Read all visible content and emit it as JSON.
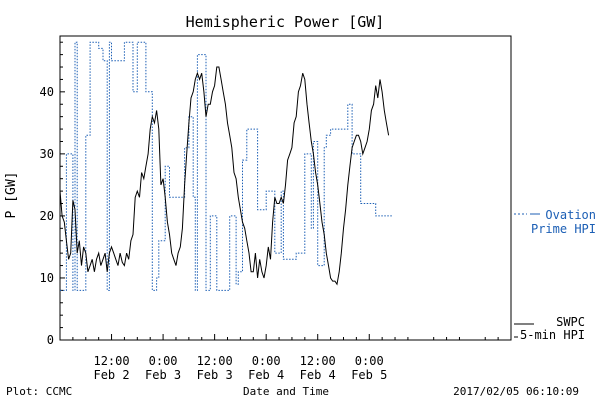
{
  "chart_data": {
    "type": "line",
    "title": "Hemispheric Power [GW]",
    "ylabel": "P [GW]",
    "xlabel": "Date and Time",
    "ylim": [
      0,
      49
    ],
    "xlim": [
      0,
      105
    ],
    "x_unit": "hours since 2017-02-02 00:00 UT",
    "y_ticks": [
      0,
      10,
      20,
      30,
      40
    ],
    "x_ticks": [
      {
        "x": 12,
        "time": "12:00",
        "date": "Feb 2"
      },
      {
        "x": 24,
        "time": "0:00",
        "date": "Feb 3"
      },
      {
        "x": 36,
        "time": "12:00",
        "date": "Feb 3"
      },
      {
        "x": 48,
        "time": "0:00",
        "date": "Feb 4"
      },
      {
        "x": 60,
        "time": "12:00",
        "date": "Feb 4"
      },
      {
        "x": 72,
        "time": "0:00",
        "date": "Feb 5"
      }
    ],
    "series": [
      {
        "name": "Ovation Prime HPI",
        "legend_lines": [
          "Ovation",
          "Prime HPI"
        ],
        "color": "#1c5fb5",
        "style": "dotted-step",
        "x": [
          0.0,
          1.5,
          3.0,
          3.5,
          4.0,
          6.0,
          7.0,
          9.0,
          10.0,
          11.0,
          11.5,
          12.0,
          13.0,
          14.0,
          15.0,
          16.0,
          17.0,
          18.0,
          19.0,
          20.0,
          21.5,
          22.5,
          23.0,
          24.5,
          25.5,
          26.5,
          29.0,
          30.0,
          31.0,
          31.5,
          32.0,
          33.0,
          34.0,
          35.0,
          36.5,
          37.5,
          38.0,
          39.5,
          41.0,
          41.5,
          42.5,
          43.5,
          46.0,
          47.0,
          48.0,
          50.0,
          51.5,
          52.0,
          54.0,
          55.0,
          57.0,
          58.5,
          59.0,
          60.0,
          61.5,
          62.0,
          63.0,
          63.5,
          64.5,
          65.0,
          66.0,
          67.0,
          68.0,
          69.5,
          70.0,
          71.0,
          73.5,
          74.0,
          75.0,
          76.0
        ],
        "y": [
          8.0,
          30.0,
          8.0,
          48.0,
          8.0,
          33.0,
          48.0,
          47.0,
          45.0,
          8.0,
          48.0,
          45.0,
          45.0,
          45.0,
          48.0,
          48.0,
          40.0,
          48.0,
          48.0,
          40.0,
          8.0,
          10.0,
          16.0,
          28.0,
          23.0,
          23.0,
          31.0,
          36.0,
          23.0,
          8.0,
          46.0,
          46.0,
          8.0,
          20.0,
          8.0,
          8.0,
          8.0,
          20.0,
          9.0,
          11.0,
          29.0,
          34.0,
          21.0,
          21.0,
          24.0,
          14.0,
          24.0,
          13.0,
          13.0,
          14.0,
          30.0,
          18.0,
          32.0,
          12.0,
          31.0,
          33.0,
          34.0,
          34.0,
          34.0,
          34.0,
          34.0,
          38.0,
          30.0,
          30.0,
          22.0,
          22.0,
          20.0,
          20.0,
          20.0,
          20.0
        ]
      },
      {
        "name": "SWPC 5-min HPI",
        "legend_lines": [
          "SWPC",
          "5-min HPI"
        ],
        "color": "#000000",
        "style": "solid",
        "x": [
          0.0,
          0.5,
          1.0,
          1.5,
          2.0,
          2.5,
          3.0,
          3.5,
          4.0,
          4.5,
          5.0,
          5.5,
          6.0,
          6.5,
          7.0,
          7.5,
          8.0,
          8.5,
          9.0,
          9.5,
          10.0,
          10.5,
          11.0,
          11.5,
          12.0,
          12.5,
          13.0,
          13.5,
          14.0,
          14.5,
          15.0,
          15.5,
          16.0,
          16.5,
          17.0,
          17.5,
          18.0,
          18.5,
          19.0,
          19.5,
          20.0,
          20.5,
          21.0,
          21.5,
          22.0,
          22.5,
          23.0,
          23.5,
          24.0,
          24.5,
          25.0,
          25.5,
          26.0,
          26.5,
          27.0,
          27.5,
          28.0,
          28.5,
          29.0,
          29.5,
          30.0,
          30.5,
          31.0,
          31.5,
          32.0,
          32.5,
          33.0,
          33.5,
          34.0,
          34.5,
          35.0,
          35.5,
          36.0,
          36.5,
          37.0,
          37.5,
          38.0,
          38.5,
          39.0,
          39.5,
          40.0,
          40.5,
          41.0,
          41.5,
          42.0,
          42.5,
          43.0,
          43.5,
          44.0,
          44.5,
          45.0,
          45.5,
          46.0,
          46.5,
          47.0,
          47.5,
          48.0,
          48.5,
          49.0,
          49.5,
          50.0,
          50.5,
          51.0,
          51.5,
          52.0,
          52.5,
          53.0,
          53.5,
          54.0,
          54.5,
          55.0,
          55.5,
          56.0,
          56.5,
          57.0,
          57.5,
          58.0,
          58.5,
          59.0,
          59.5,
          60.0,
          60.5,
          61.0,
          61.5,
          62.0,
          62.5,
          63.0,
          63.5,
          64.0,
          64.5,
          65.0,
          65.5,
          66.0,
          66.5,
          67.0,
          67.5,
          68.0,
          68.5,
          69.0,
          69.5,
          70.0,
          70.5,
          71.0,
          71.5,
          72.0,
          72.5,
          73.0,
          73.5,
          74.0,
          74.5,
          75.0,
          75.5,
          76.0,
          76.5
        ],
        "y": [
          24.0,
          20.0,
          19.0,
          16.0,
          13.0,
          14.0,
          22.5,
          21.0,
          14.0,
          16.0,
          12.0,
          15.0,
          14.0,
          11.0,
          12.0,
          13.0,
          11.0,
          13.0,
          14.0,
          12.0,
          13.0,
          14.0,
          11.0,
          14.0,
          15.0,
          14.0,
          13.0,
          12.0,
          14.0,
          12.5,
          12.0,
          14.0,
          13.0,
          16.0,
          17.0,
          23.0,
          24.0,
          23.0,
          27.0,
          26.0,
          28.0,
          30.0,
          34.0,
          36.0,
          35.0,
          37.0,
          34.0,
          25.0,
          26.0,
          23.0,
          19.0,
          17.0,
          14.0,
          13.0,
          12.0,
          14.0,
          15.0,
          18.0,
          25.0,
          30.0,
          35.0,
          39.0,
          40.0,
          42.0,
          43.0,
          42.0,
          43.0,
          40.0,
          36.0,
          38.0,
          38.0,
          40.0,
          41.0,
          44.0,
          44.0,
          42.0,
          40.0,
          38.0,
          35.0,
          33.0,
          31.0,
          27.0,
          26.0,
          23.0,
          21.0,
          19.0,
          18.0,
          16.0,
          14.0,
          11.0,
          11.0,
          14.0,
          10.0,
          13.0,
          11.0,
          10.0,
          12.0,
          15.0,
          13.0,
          19.0,
          23.0,
          22.0,
          22.0,
          23.0,
          22.0,
          25.0,
          29.0,
          30.0,
          31.0,
          35.0,
          36.0,
          40.0,
          41.0,
          43.0,
          42.0,
          38.0,
          35.0,
          32.0,
          30.0,
          27.0,
          25.0,
          22.0,
          19.0,
          17.0,
          14.0,
          12.0,
          10.0,
          9.5,
          9.5,
          9.0,
          11.0,
          14.0,
          18.0,
          21.0,
          25.0,
          28.0,
          31.0,
          32.0,
          33.0,
          33.0,
          32.0,
          30.0,
          31.0,
          32.0,
          34.0,
          37.0,
          38.0,
          41.0,
          39.0,
          42.0,
          40.0,
          37.0,
          35.0,
          33.0
        ]
      }
    ],
    "grid": false,
    "legend": "right"
  },
  "footer": {
    "left": "Plot: CCMC",
    "center": "Date and Time",
    "right": "2017/02/05 06:10:09"
  },
  "legend": {
    "ovation_line1": "Ovation",
    "ovation_line2": "Prime HPI",
    "swpc_line1": "SWPC",
    "swpc_line2": "5-min HPI"
  }
}
